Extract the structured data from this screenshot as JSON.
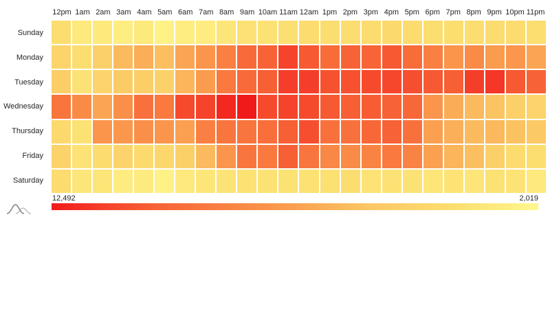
{
  "chart_data": {
    "type": "heatmap",
    "title": "",
    "x_labels": [
      "12pm",
      "1am",
      "2am",
      "3am",
      "4am",
      "5am",
      "6am",
      "7am",
      "8am",
      "9am",
      "10am",
      "11am",
      "12am",
      "1pm",
      "2pm",
      "3pm",
      "4pm",
      "5pm",
      "6pm",
      "7pm",
      "8pm",
      "9pm",
      "10pm",
      "11pm"
    ],
    "y_labels": [
      "Sunday",
      "Monday",
      "Tuesday",
      "Wednesday",
      "Thursday",
      "Friday",
      "Saturday"
    ],
    "values": [
      [
        3900,
        3100,
        3100,
        2750,
        3100,
        2450,
        2750,
        2850,
        3300,
        3600,
        3600,
        3800,
        4100,
        3900,
        3900,
        4100,
        4300,
        4100,
        3900,
        3900,
        3900,
        4100,
        4100,
        3900
      ],
      [
        4650,
        3900,
        4950,
        6200,
        6700,
        6000,
        7050,
        7800,
        8850,
        9850,
        10200,
        11250,
        10600,
        9800,
        10200,
        10100,
        10600,
        9800,
        8850,
        7800,
        8300,
        7450,
        7700,
        7050
      ],
      [
        5150,
        3600,
        4650,
        5350,
        5150,
        4850,
        6400,
        7450,
        9150,
        9850,
        10400,
        11450,
        11450,
        10800,
        10800,
        11050,
        11150,
        10900,
        10600,
        10400,
        11450,
        11650,
        10600,
        10200
      ],
      [
        9350,
        8300,
        7050,
        8100,
        9550,
        9150,
        11050,
        11250,
        12050,
        12492,
        11050,
        11250,
        11050,
        10600,
        10400,
        10450,
        10200,
        10000,
        7800,
        6750,
        6200,
        5800,
        4950,
        4650
      ],
      [
        4300,
        3700,
        7800,
        7700,
        8100,
        7800,
        7250,
        8850,
        9350,
        9350,
        9650,
        10400,
        10900,
        9550,
        9550,
        10000,
        10200,
        9550,
        7250,
        6650,
        6200,
        6300,
        5900,
        5500
      ],
      [
        4750,
        3500,
        4100,
        4650,
        4200,
        4450,
        4950,
        6200,
        7800,
        9350,
        9150,
        10400,
        9350,
        8500,
        8300,
        8700,
        9150,
        8700,
        7250,
        6400,
        6000,
        4950,
        4100,
        3900
      ],
      [
        4100,
        3300,
        3350,
        2850,
        2900,
        2450,
        3050,
        3300,
        3500,
        3700,
        3600,
        3700,
        3700,
        3750,
        3900,
        3500,
        3600,
        3600,
        3350,
        3500,
        3350,
        3700,
        3500,
        3050
      ]
    ],
    "value_min": 2019,
    "value_max": 12492,
    "legend": {
      "max_label": "12,492",
      "min_label": "2,019"
    },
    "color_stops": [
      {
        "t": 0.0,
        "rgb": [
          255,
          247,
          140
        ]
      },
      {
        "t": 0.18,
        "rgb": [
          252,
          222,
          112
        ]
      },
      {
        "t": 0.35,
        "rgb": [
          251,
          199,
          100
        ]
      },
      {
        "t": 0.5,
        "rgb": [
          250,
          160,
          80
        ]
      },
      {
        "t": 0.65,
        "rgb": [
          249,
          128,
          66
        ]
      },
      {
        "t": 0.8,
        "rgb": [
          247,
          95,
          52
        ]
      },
      {
        "t": 0.9,
        "rgb": [
          245,
          62,
          41
        ]
      },
      {
        "t": 1.0,
        "rgb": [
          241,
          26,
          26
        ]
      }
    ],
    "layout": {
      "grid_on": false,
      "legend_position": "bottom",
      "cell_gap_color": "#ffffff"
    }
  },
  "icons": {
    "distribution_icon": "overlapping-density-curves",
    "distribution_icon_colors": {
      "primary": "#8a8a8a",
      "secondary": "#c2c2c2"
    }
  }
}
